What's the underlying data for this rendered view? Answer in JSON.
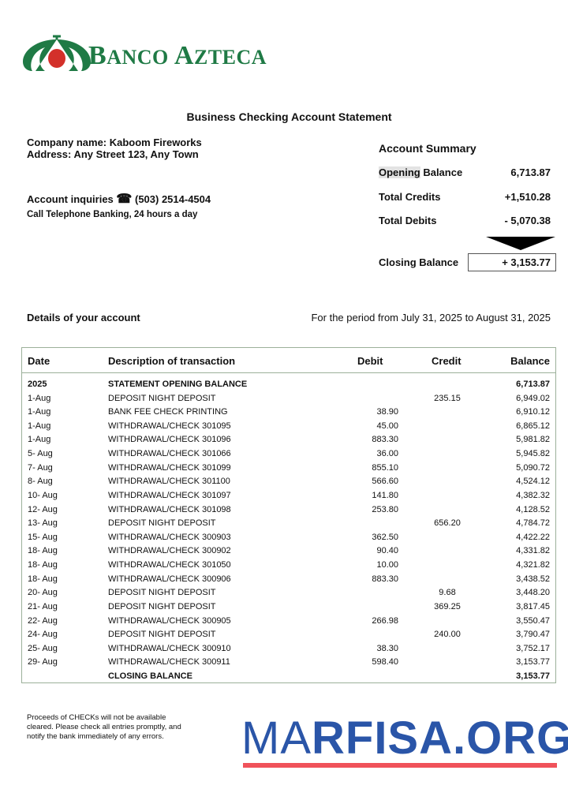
{
  "bank": {
    "name": "Banco Azteca",
    "logo_colors": {
      "green": "#1f7a45",
      "red": "#d3302a"
    }
  },
  "title": "Business Checking Account Statement",
  "company": {
    "name_line": "Company name: Kaboom Fireworks",
    "address_line": "Address: Any Street 123, Any Town"
  },
  "inquiries": {
    "label": "Account inquiries",
    "icon": "telephone-icon",
    "phone": "(503) 2514-4504",
    "note": "Call Telephone Banking, 24 hours a day"
  },
  "summary": {
    "heading": "Account Summary",
    "opening_label_hl": "Opening",
    "opening_label_rest": " Balance",
    "opening_value": "6,713.87",
    "credits_label": "Total Credits",
    "credits_value": "+1,510.28",
    "debits_label": "Total Debits",
    "debits_value": "- 5,070.38",
    "closing_label": "Closing Balance",
    "closing_value": "+ 3,153.77"
  },
  "details_label": "Details of your account",
  "period": "For the period from July 31, 2025 to August 31, 2025",
  "table": {
    "headers": [
      "Date",
      "Description of transaction",
      "Debit",
      "Credit",
      "Balance"
    ],
    "rows": [
      [
        "2025",
        "STATEMENT OPENING BALANCE",
        "",
        "",
        "6,713.87"
      ],
      [
        "1-Aug",
        "DEPOSIT NIGHT DEPOSIT",
        "",
        "235.15",
        "6,949.02"
      ],
      [
        "1-Aug",
        "BANK FEE CHECK PRINTING",
        "38.90",
        "",
        "6,910.12"
      ],
      [
        "1-Aug",
        "WITHDRAWAL/CHECK 301095",
        "45.00",
        "",
        "6,865.12"
      ],
      [
        "1-Aug",
        "WITHDRAWAL/CHECK 301096",
        "883.30",
        "",
        "5,981.82"
      ],
      [
        "5- Aug",
        "WITHDRAWAL/CHECK 301066",
        "36.00",
        "",
        "5,945.82"
      ],
      [
        "7- Aug",
        "WITHDRAWAL/CHECK 301099",
        "855.10",
        "",
        "5,090.72"
      ],
      [
        "8- Aug",
        "WITHDRAWAL/CHECK 301100",
        "566.60",
        "",
        "4,524.12"
      ],
      [
        "10- Aug",
        "WITHDRAWAL/CHECK 301097",
        "141.80",
        "",
        "4,382.32"
      ],
      [
        "12- Aug",
        "WITHDRAWAL/CHECK 301098",
        "253.80",
        "",
        "4,128.52"
      ],
      [
        "13- Aug",
        "DEPOSIT NIGHT DEPOSIT",
        "",
        "656.20",
        "4,784.72"
      ],
      [
        "15- Aug",
        "WITHDRAWAL/CHECK 300903",
        "362.50",
        "",
        "4,422.22"
      ],
      [
        "18- Aug",
        "WITHDRAWAL/CHECK 300902",
        "90.40",
        "",
        "4,331.82"
      ],
      [
        "18- Aug",
        "WITHDRAWAL/CHECK 301050",
        "10.00",
        "",
        "4,321.82"
      ],
      [
        "18- Aug",
        "WITHDRAWAL/CHECK 300906",
        "883.30",
        "",
        "3,438.52"
      ],
      [
        "20- Aug",
        "DEPOSIT NIGHT DEPOSIT",
        "",
        "9.68",
        "3,448.20"
      ],
      [
        "21- Aug",
        "DEPOSIT NIGHT DEPOSIT",
        "",
        "369.25",
        "3,817.45"
      ],
      [
        "22- Aug",
        "WITHDRAWAL/CHECK 300905",
        "266.98",
        "",
        "3,550.47"
      ],
      [
        "24- Aug",
        "DEPOSIT NIGHT DEPOSIT",
        "",
        "240.00",
        "3,790.47"
      ],
      [
        "25- Aug",
        "WITHDRAWAL/CHECK 300910",
        "38.30",
        "",
        "3,752.17"
      ],
      [
        "29- Aug",
        "WITHDRAWAL/CHECK 300911",
        "598.40",
        "",
        "3,153.77"
      ],
      [
        "",
        "CLOSING BALANCE",
        "",
        "",
        "3,153.77"
      ]
    ]
  },
  "footer_note": [
    "Proceeds of CHECKs will not be available",
    "cleared. Please check all entries promptly, and",
    "notify the bank immediately of any errors."
  ],
  "watermark": {
    "text": "MARFISA.ORG",
    "color": "#2a55a8",
    "bar_color": "#f0525a"
  }
}
